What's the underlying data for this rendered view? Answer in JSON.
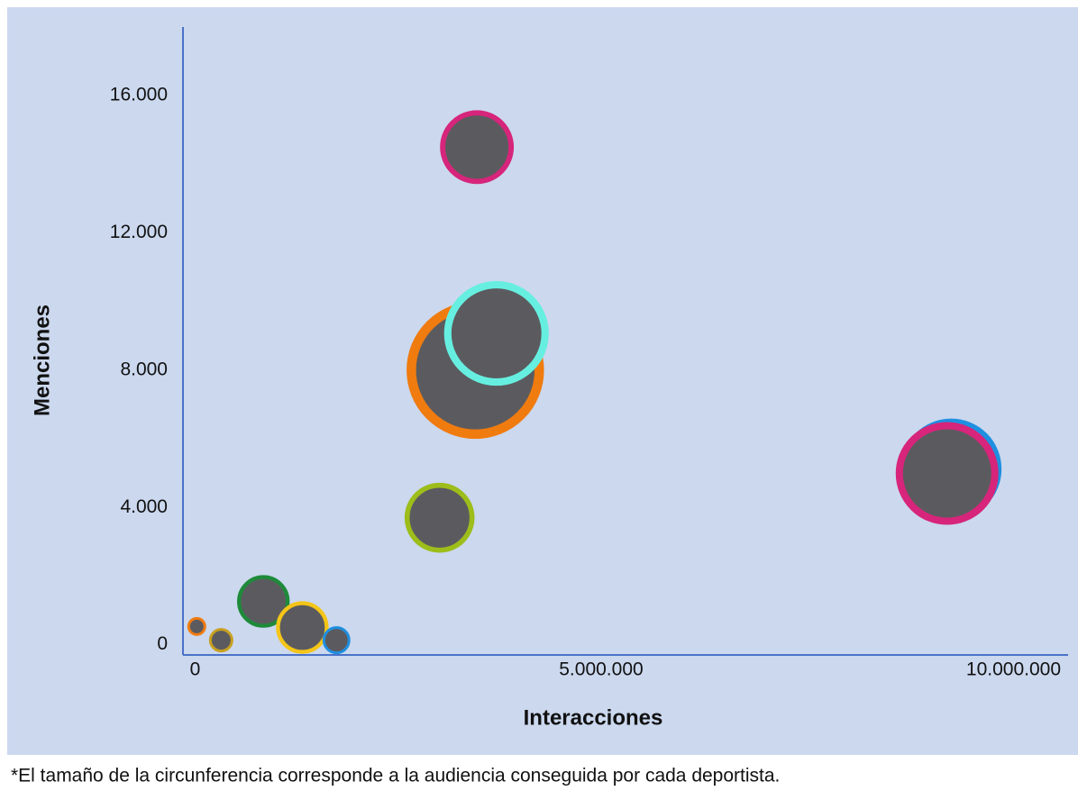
{
  "chart_data": {
    "type": "scatter",
    "x_label": "Interacciones",
    "y_label": "Menciones",
    "note": "*El tamaño de la circunferencia corresponde a la audiencia conseguida por cada deportista.",
    "xlim": [
      -150000,
      10750000
    ],
    "ylim": [
      -300,
      18000
    ],
    "xticks": [
      0,
      {
        "value": 5000000,
        "label": "5.000.000"
      },
      {
        "value": 10000000,
        "label": "10.000.000"
      }
    ],
    "yticks": [
      0,
      {
        "value": 4000,
        "label": "4.000"
      },
      {
        "value": 8000,
        "label": "8.000"
      },
      {
        "value": 12000,
        "label": "12.000"
      },
      {
        "value": 16000,
        "label": "16.000"
      }
    ],
    "axis_color": "#4a72c8",
    "x": [
      3450000,
      3710000,
      3470000,
      9310000,
      9260000,
      3010000,
      840000,
      1320000,
      1740000,
      20000,
      320000
    ],
    "values": [
      8000,
      9070,
      14500,
      5120,
      4990,
      3700,
      1260,
      500,
      130,
      530,
      130
    ],
    "sizes": [
      5625,
      3364,
      1764,
      3136,
      3249,
      1600,
      961,
      961,
      324,
      169,
      256
    ],
    "colors": [
      "#f07b0f",
      "#66efe0",
      "#d6257a",
      "#1f8fe0",
      "#d6257a",
      "#9dbd1a",
      "#1e8a3a",
      "#f5c518",
      "#1f8fe0",
      "#f07b0f",
      "#c8a020"
    ]
  }
}
